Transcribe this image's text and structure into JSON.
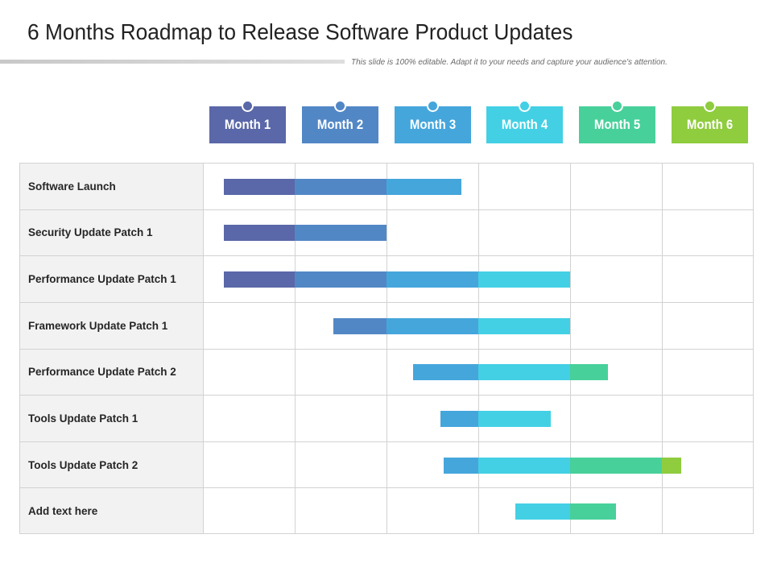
{
  "title": "6 Months Roadmap to Release Software Product Updates",
  "subtitle": "This slide is 100% editable. Adapt it to your needs and capture your audience's attention.",
  "months": [
    {
      "label": "Month 1",
      "color": "#5a67a8"
    },
    {
      "label": "Month 2",
      "color": "#5287c6"
    },
    {
      "label": "Month 3",
      "color": "#45a6dc"
    },
    {
      "label": "Month 4",
      "color": "#43d0e4"
    },
    {
      "label": "Month 5",
      "color": "#48d09b"
    },
    {
      "label": "Month 6",
      "color": "#8fcc3e"
    }
  ],
  "tasks": [
    {
      "label": "Software Launch",
      "start": 0.23,
      "end": 2.82
    },
    {
      "label": "Security Update Patch 1",
      "start": 0.23,
      "end": 2.0
    },
    {
      "label": "Performance Update Patch 1",
      "start": 0.23,
      "end": 4.0
    },
    {
      "label": "Framework Update Patch 1",
      "start": 1.42,
      "end": 4.0
    },
    {
      "label": "Performance Update Patch 2",
      "start": 2.29,
      "end": 4.41
    },
    {
      "label": "Tools Update Patch 1",
      "start": 2.59,
      "end": 3.79
    },
    {
      "label": "Tools Update Patch 2",
      "start": 2.62,
      "end": 5.21
    },
    {
      "label": "Add text here",
      "start": 3.4,
      "end": 4.5
    }
  ]
}
